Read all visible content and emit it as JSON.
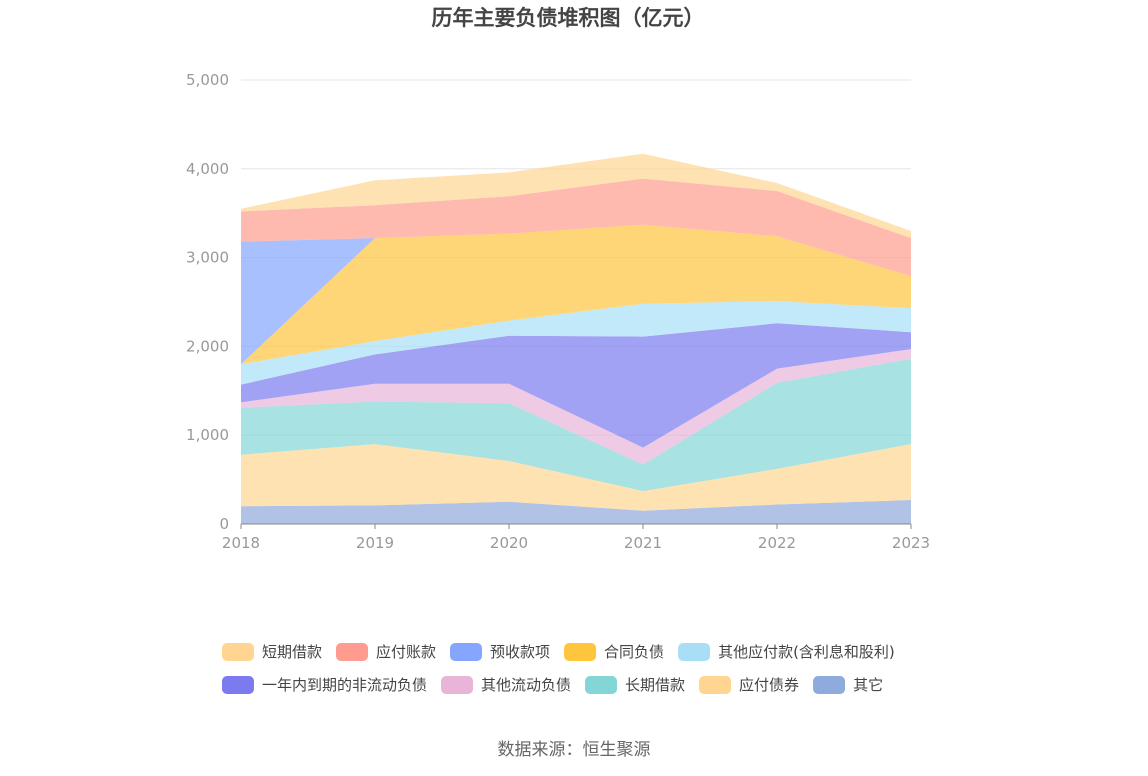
{
  "chart_data": {
    "type": "area",
    "stacked": true,
    "title": "历年主要负债堆积图（亿元）",
    "x": [
      "2018",
      "2019",
      "2020",
      "2021",
      "2022",
      "2023"
    ],
    "ylim": [
      0,
      5000
    ],
    "yticks": [
      "0",
      "1,000",
      "2,000",
      "3,000",
      "4,000",
      "5,000"
    ],
    "grid": true,
    "legend_position": "bottom",
    "series": [
      {
        "name": "其它",
        "color": "#8FAADC",
        "values": [
          200,
          210,
          250,
          150,
          220,
          270
        ]
      },
      {
        "name": "应付债券",
        "color": "#FFD591",
        "values": [
          580,
          690,
          460,
          220,
          400,
          630
        ]
      },
      {
        "name": "长期借款",
        "color": "#84D6D6",
        "values": [
          530,
          480,
          650,
          300,
          970,
          960
        ]
      },
      {
        "name": "其他流动负债",
        "color": "#E8B4D8",
        "values": [
          60,
          200,
          220,
          190,
          160,
          110
        ]
      },
      {
        "name": "一年内到期的非流动负债",
        "color": "#7B7BEF",
        "values": [
          200,
          330,
          540,
          1250,
          510,
          190
        ]
      },
      {
        "name": "其他应付款(含利息和股利)",
        "color": "#A8DFF7",
        "values": [
          230,
          150,
          170,
          370,
          250,
          270
        ]
      },
      {
        "name": "合同负债",
        "color": "#FFC53D",
        "values": [
          0,
          1160,
          980,
          890,
          730,
          360
        ]
      },
      {
        "name": "预收款项",
        "color": "#85A5FF",
        "values": [
          1380,
          0,
          0,
          0,
          0,
          0
        ]
      },
      {
        "name": "应付账款",
        "color": "#FF9C8F",
        "values": [
          340,
          370,
          420,
          520,
          510,
          430
        ]
      },
      {
        "name": "短期借款",
        "color": "#FFD591",
        "values": [
          30,
          280,
          270,
          280,
          90,
          80
        ]
      }
    ],
    "legend_order": [
      "短期借款",
      "应付账款",
      "预收款项",
      "合同负债",
      "其他应付款(含利息和股利)",
      "一年内到期的非流动负债",
      "其他流动负债",
      "长期借款",
      "应付债券",
      "其它"
    ]
  },
  "source_text": "数据来源：恒生聚源"
}
